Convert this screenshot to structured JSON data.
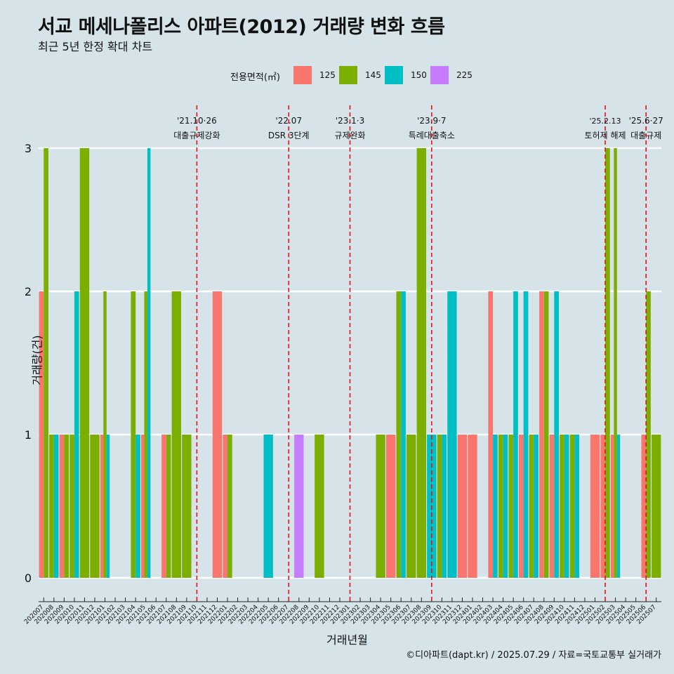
{
  "title": "서교 메세나폴리스 아파트(2012) 거래량 변화 흐름",
  "subtitle": "최근 5년 한정 확대 차트",
  "legend": {
    "title": "전용면적(㎡)",
    "items": [
      {
        "label": "125",
        "color": "#f8766d"
      },
      {
        "label": "145",
        "color": "#7cae00"
      },
      {
        "label": "150",
        "color": "#00bfc4"
      },
      {
        "label": "225",
        "color": "#c77cff"
      }
    ]
  },
  "xlabel": "거래년월",
  "ylabel": "거래량(건)",
  "caption": "©디아파트(dapt.kr) / 2025.07.29 / 자료=국토교통부 실거래가",
  "chart_data": {
    "type": "bar",
    "x": [
      "202007",
      "202008",
      "202009",
      "202010",
      "202011",
      "202012",
      "202101",
      "202102",
      "202103",
      "202104",
      "202105",
      "202106",
      "202107",
      "202108",
      "202109",
      "202110",
      "202111",
      "202112",
      "202201",
      "202202",
      "202203",
      "202204",
      "202205",
      "202206",
      "202207",
      "202208",
      "202209",
      "202210",
      "202211",
      "202212",
      "202301",
      "202302",
      "202303",
      "202304",
      "202305",
      "202306",
      "202307",
      "202308",
      "202309",
      "202310",
      "202311",
      "202312",
      "202401",
      "202402",
      "202403",
      "202404",
      "202405",
      "202406",
      "202407",
      "202408",
      "202409",
      "202410",
      "202411",
      "202412",
      "202501",
      "202502",
      "202503",
      "202504",
      "202505",
      "202506",
      "202507"
    ],
    "series": [
      {
        "name": "125",
        "values": [
          2,
          0,
          1,
          0,
          0,
          0,
          1,
          0,
          0,
          0,
          1,
          0,
          1,
          0,
          0,
          0,
          0,
          2,
          1,
          0,
          0,
          0,
          0,
          0,
          0,
          0,
          0,
          0,
          0,
          0,
          0,
          0,
          0,
          0,
          1,
          0,
          0,
          0,
          0,
          0,
          0,
          1,
          1,
          0,
          2,
          0,
          0,
          1,
          0,
          2,
          1,
          0,
          0,
          0,
          1,
          1,
          1,
          0,
          0,
          1,
          0
        ]
      },
      {
        "name": "145",
        "values": [
          3,
          1,
          1,
          1,
          3,
          1,
          2,
          0,
          0,
          2,
          2,
          0,
          1,
          2,
          1,
          0,
          0,
          0,
          1,
          0,
          0,
          0,
          0,
          0,
          0,
          0,
          0,
          1,
          0,
          0,
          0,
          0,
          0,
          1,
          0,
          2,
          1,
          3,
          0,
          1,
          0,
          0,
          0,
          0,
          0,
          1,
          1,
          0,
          1,
          2,
          0,
          1,
          1,
          0,
          0,
          3,
          3,
          0,
          0,
          2,
          1
        ]
      },
      {
        "name": "150",
        "values": [
          0,
          1,
          0,
          2,
          0,
          0,
          1,
          0,
          0,
          1,
          3,
          0,
          0,
          0,
          0,
          0,
          0,
          0,
          0,
          0,
          0,
          0,
          1,
          0,
          0,
          0,
          0,
          0,
          0,
          0,
          0,
          0,
          0,
          0,
          0,
          2,
          0,
          0,
          1,
          1,
          2,
          0,
          0,
          0,
          1,
          1,
          2,
          2,
          1,
          0,
          2,
          1,
          1,
          0,
          0,
          0,
          1,
          0,
          0,
          0,
          0
        ]
      },
      {
        "name": "225",
        "values": [
          0,
          0,
          0,
          0,
          0,
          0,
          0,
          0,
          0,
          0,
          0,
          0,
          0,
          0,
          0,
          0,
          0,
          0,
          0,
          0,
          0,
          0,
          0,
          0,
          0,
          1,
          0,
          0,
          0,
          0,
          0,
          0,
          0,
          0,
          0,
          0,
          0,
          0,
          0,
          0,
          0,
          0,
          0,
          0,
          0,
          0,
          0,
          0,
          0,
          0,
          0,
          0,
          0,
          0,
          0,
          0,
          0,
          0,
          0,
          0,
          0
        ]
      }
    ],
    "ylim": [
      0,
      3
    ],
    "yticks": [
      0,
      1,
      2,
      3
    ],
    "events": [
      {
        "at": "202110",
        "date": "'21.10·26",
        "label": "대출규제강화"
      },
      {
        "at": "202207",
        "date": "'22.07",
        "label": "DSR 3단계"
      },
      {
        "at": "202301",
        "date": "'23.1·3",
        "label": "규제완화"
      },
      {
        "at": "202309",
        "date": "'23.9·7",
        "label": "특례대출축소"
      },
      {
        "at": "202502",
        "date": "'25.2.13",
        "label": "토허제 해제"
      },
      {
        "at": "202506",
        "date": "'25.6·27",
        "label": "대출규제"
      }
    ],
    "event_color": "#e8101b"
  }
}
